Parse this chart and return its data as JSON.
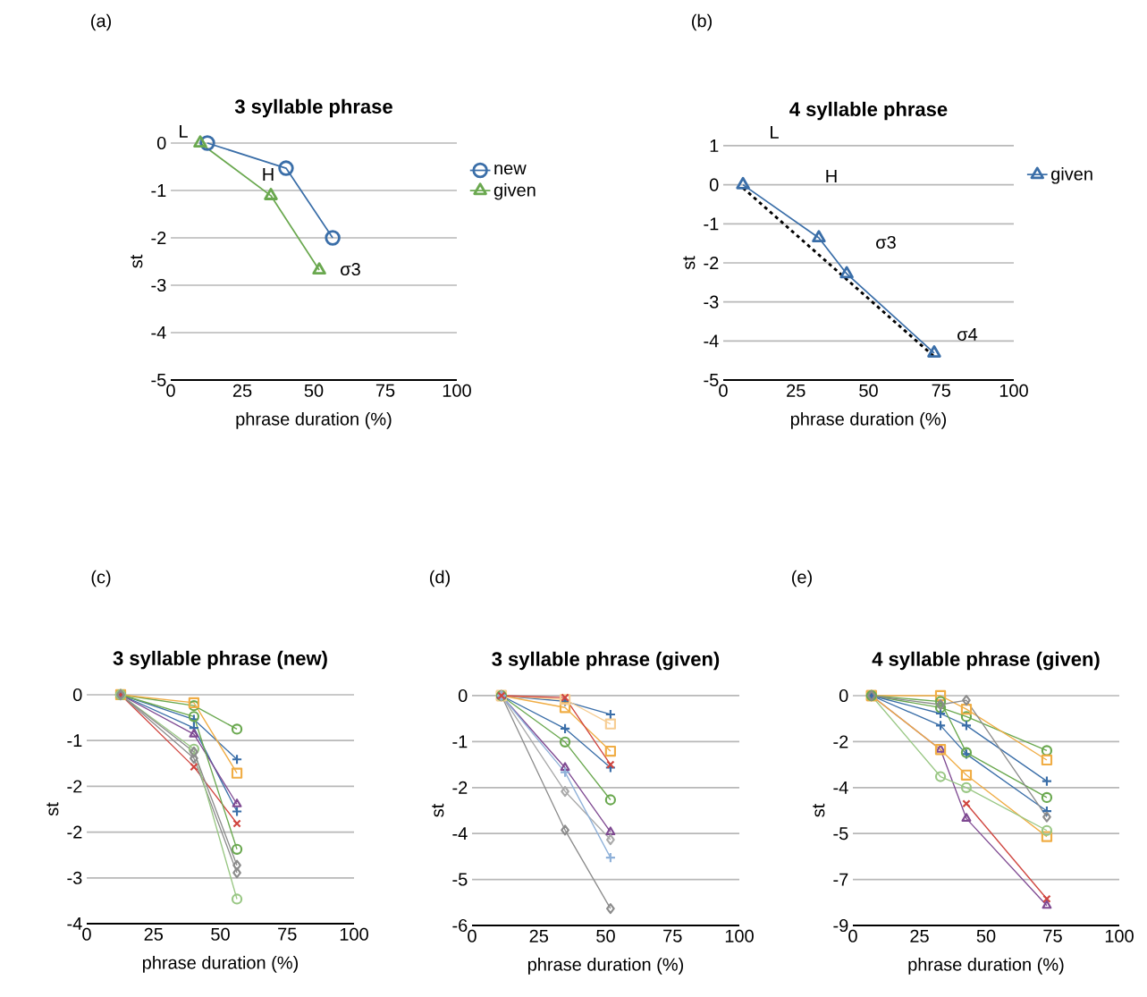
{
  "chart_data": [
    {
      "type": "line",
      "title": "3 syllable phrase",
      "xlabel": "phrase duration (%)",
      "ylabel": "st",
      "xlim": [
        0,
        100
      ],
      "ylim": [
        -5,
        0
      ],
      "xticks": [
        0,
        25,
        50,
        75,
        100
      ],
      "yticks": [
        -5,
        -4,
        -3,
        -2,
        -1,
        0
      ],
      "grid": "y",
      "legend": "right",
      "annotations": [
        "(a)",
        "L",
        "H",
        "σ3"
      ],
      "series": [
        {
          "name": "new",
          "color": "#3a6ea8",
          "marker": "circle",
          "x": [
            12.8,
            40.3,
            56.6
          ],
          "values": [
            0,
            -0.53,
            -2.0
          ]
        },
        {
          "name": "given",
          "color": "#6aa84f",
          "marker": "triangle",
          "x": [
            10.3,
            35,
            51.9
          ],
          "values": [
            0,
            -1.11,
            -2.68
          ]
        }
      ]
    },
    {
      "type": "line",
      "title": "4 syllable phrase",
      "xlabel": "phrase duration (%)",
      "ylabel": "st",
      "xlim": [
        0,
        100
      ],
      "ylim": [
        -5,
        1
      ],
      "xticks": [
        0,
        25,
        50,
        75,
        100
      ],
      "yticks": [
        -5,
        -4,
        -3,
        -2,
        -1,
        0,
        1
      ],
      "grid": "y",
      "legend": "right",
      "annotations": [
        "(b)",
        "L",
        "H",
        "σ3",
        "σ4"
      ],
      "series": [
        {
          "name": "given",
          "color": "#3a6ea8",
          "marker": "triangle",
          "x": [
            6.8,
            32.9,
            42.5,
            72.6
          ],
          "values": [
            0,
            -1.36,
            -2.28,
            -4.31
          ]
        },
        {
          "color": "#000000",
          "marker": "none",
          "line_style": "dashed",
          "x": [
            6.8,
            72.6
          ],
          "values": [
            -0.08,
            -4.4
          ]
        }
      ]
    },
    {
      "type": "line",
      "title": "3 syllable phrase (new)",
      "xlabel": "phrase duration (%)",
      "ylabel": "st",
      "xlim": [
        0,
        100
      ],
      "ylim": [
        -4,
        0
      ],
      "xticks": [
        0,
        25,
        50,
        75,
        100
      ],
      "yticks": [
        {
          "value": -4,
          "label": "-4"
        },
        {
          "value": -3.2,
          "label": "-3"
        },
        {
          "value": -2.4,
          "label": "-2"
        },
        {
          "value": -1.6,
          "label": "-2"
        },
        {
          "value": -0.8,
          "label": "-1"
        },
        0
      ],
      "grid": "y",
      "annotations": [
        "(c)"
      ],
      "x": [
        12.7,
        40.1,
        56.2
      ],
      "series": [
        {
          "color": "#3a6ea8",
          "marker": "plus",
          "values": [
            0,
            -0.43,
            -1.13
          ]
        },
        {
          "color": "#3a6ea8",
          "marker": "plus",
          "values": [
            0,
            -0.58,
            -2.04
          ]
        },
        {
          "color": "#6aa84f",
          "marker": "circle",
          "values": [
            0,
            -0.19,
            -0.6
          ]
        },
        {
          "color": "#f0ad45",
          "marker": "square",
          "values": [
            0,
            -0.14,
            -1.37
          ]
        },
        {
          "color": "#7f4a92",
          "marker": "triangle",
          "values": [
            0,
            -0.69,
            -1.91
          ]
        },
        {
          "color": "#d0453f",
          "marker": "cross",
          "values": [
            0,
            -1.26,
            -2.25
          ]
        },
        {
          "color": "#8c8c8c",
          "marker": "diamond",
          "values": [
            0,
            -1.11,
            -3.11
          ]
        },
        {
          "color": "#6aa84f",
          "marker": "circle",
          "values": [
            0,
            -0.38,
            -2.7
          ]
        },
        {
          "color": "#99c784",
          "marker": "circle",
          "values": [
            0,
            -0.95,
            -3.57
          ]
        },
        {
          "color": "#8c8c8c",
          "marker": "diamond",
          "values": [
            0,
            -1.0,
            -2.98
          ]
        }
      ]
    },
    {
      "type": "line",
      "title": "3 syllable phrase (given)",
      "xlabel": "phrase duration (%)",
      "ylabel": "st",
      "xlim": [
        0,
        100
      ],
      "ylim": [
        -6,
        0
      ],
      "xticks": [
        0,
        25,
        50,
        75,
        100
      ],
      "yticks": [
        {
          "value": -6,
          "label": "-6"
        },
        {
          "value": -4.8,
          "label": "-5"
        },
        {
          "value": -3.6,
          "label": "-4"
        },
        {
          "value": -2.4,
          "label": "-2"
        },
        {
          "value": -1.2,
          "label": "-1"
        },
        0
      ],
      "grid": "y",
      "annotations": [
        "(d)"
      ],
      "x": [
        11,
        34.8,
        51.8
      ],
      "series": [
        {
          "color": "#3a6ea8",
          "marker": "plus",
          "values": [
            0,
            -0.15,
            -0.49
          ]
        },
        {
          "color": "#3a6ea8",
          "marker": "plus",
          "values": [
            0,
            -0.86,
            -1.88
          ]
        },
        {
          "color": "#f0ad45",
          "marker": "square",
          "values": [
            0,
            -0.31,
            -1.45
          ]
        },
        {
          "color": "#f6cd93",
          "marker": "square",
          "values": [
            0,
            -0.1,
            -0.74
          ]
        },
        {
          "color": "#6aa84f",
          "marker": "circle",
          "values": [
            0,
            -1.21,
            -2.72
          ]
        },
        {
          "color": "#7f4a92",
          "marker": "triangle",
          "values": [
            0,
            -1.88,
            -3.56
          ]
        },
        {
          "color": "#8c8c8c",
          "marker": "diamond",
          "values": [
            0,
            -3.51,
            -5.56
          ]
        },
        {
          "color": "#aaaaaa",
          "marker": "diamond",
          "values": [
            0,
            -2.5,
            -3.76
          ]
        },
        {
          "color": "#8fb1d9",
          "marker": "plus",
          "values": [
            0,
            -2.0,
            -4.23
          ]
        },
        {
          "color": "#d0453f",
          "marker": "cross",
          "values": [
            0,
            -0.05,
            -1.8
          ]
        }
      ]
    },
    {
      "type": "line",
      "title": "4 syllable phrase (given)",
      "xlabel": "phrase duration (%)",
      "ylabel": "st",
      "xlim": [
        0,
        100
      ],
      "ylim": [
        -9,
        0
      ],
      "xticks": [
        0,
        25,
        50,
        75,
        100
      ],
      "yticks": [
        {
          "value": -9,
          "label": "-9"
        },
        {
          "value": -7.2,
          "label": "-7"
        },
        {
          "value": -5.4,
          "label": "-5"
        },
        {
          "value": -3.6,
          "label": "-4"
        },
        {
          "value": -1.8,
          "label": "-2"
        },
        0
      ],
      "grid": "y",
      "annotations": [
        "(e)"
      ],
      "x": [
        7,
        32.9,
        42.6,
        72.8
      ],
      "series": [
        {
          "color": "#d0453f",
          "marker": "cross",
          "values": [
            0,
            null,
            -4.23,
            -7.96
          ]
        },
        {
          "color": "#7f4a92",
          "marker": "triangle",
          "values": [
            0,
            -2.11,
            -4.81,
            -8.22
          ]
        },
        {
          "color": "#6aa84f",
          "marker": "circle",
          "values": [
            0,
            -0.47,
            -0.82,
            -2.15
          ]
        },
        {
          "color": "#f0ad45",
          "marker": "square",
          "values": [
            0,
            -2.11,
            -3.11,
            -5.52
          ]
        },
        {
          "color": "#f0ad45",
          "marker": "square",
          "values": [
            0,
            0,
            -0.53,
            -2.52
          ]
        },
        {
          "color": "#3a6ea8",
          "marker": "plus",
          "values": [
            0,
            -1.17,
            -2.29,
            -4.52
          ]
        },
        {
          "color": "#3a6ea8",
          "marker": "plus",
          "values": [
            0,
            -0.7,
            -1.17,
            -3.35
          ]
        },
        {
          "color": "#99c784",
          "marker": "circle",
          "values": [
            0,
            -3.17,
            -3.6,
            -5.28
          ]
        },
        {
          "color": "#6aa84f",
          "marker": "circle",
          "values": [
            0,
            -0.23,
            -2.23,
            -3.99
          ]
        },
        {
          "color": "#8c8c8c",
          "marker": "diamond",
          "values": [
            0,
            -0.35,
            -0.18,
            -4.75
          ]
        }
      ]
    }
  ]
}
